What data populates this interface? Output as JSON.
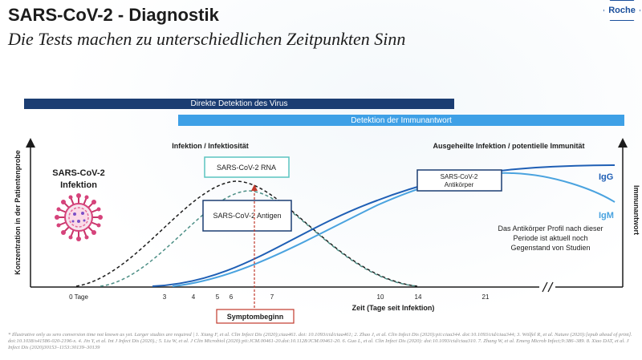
{
  "header": {
    "title": "SARS-CoV-2 - Diagnostik",
    "subtitle": "Die Tests machen zu unterschiedlichen Zeitpunkten Sinn",
    "logo": "Roche"
  },
  "bars": {
    "direct": "Direkte Detektion des Virus",
    "immune": "Detektion der Immunantwort"
  },
  "icons": {
    "virus": "virus-icon",
    "logo": "roche-logo"
  },
  "colors": {
    "dark_blue": "#1b3d72",
    "light_blue": "#3ea0e6",
    "igg": "#1f5fb5",
    "igm": "#4aa3df",
    "rna": "#1c1c1c",
    "antigen": "#4d8f86",
    "symptom": "#c0392b"
  },
  "chart_data": {
    "type": "line",
    "xlabel": "Zeit (Tage seit Infektion)",
    "ylabel": "Konzentration in der Patientenprobe",
    "ylabel_right": "Immunantwort",
    "x_ticks": [
      "0 Tage",
      "3",
      "4",
      "5",
      "6",
      "7",
      "10",
      "14",
      "21"
    ],
    "phases": [
      "Infektion / Infektiosität",
      "Ausgeheilte Infektion / potentielle Immunität"
    ],
    "series": [
      {
        "name": "SARS-CoV-2 RNA",
        "style": "dashed",
        "color": "#1c1c1c"
      },
      {
        "name": "SARS-CoV-2 Antigen",
        "style": "dashed",
        "color": "#4d8f86"
      },
      {
        "name": "IgG",
        "style": "solid",
        "color": "#1f5fb5"
      },
      {
        "name": "IgM",
        "style": "solid",
        "color": "#4aa3df"
      }
    ],
    "labels": {
      "infection": [
        "SARS-CoV-2",
        "Infektion"
      ],
      "antibody": [
        "SARS-CoV-2",
        "Antikörper"
      ],
      "antibody_note": [
        "Das Antikörper Profil nach dieser",
        "Periode ist aktuell noch",
        "Gegenstand von Studien"
      ],
      "symptom": "Symptombeginn",
      "igg": "IgG",
      "igm": "IgM"
    }
  },
  "footnote": "* Illustrative only as sero conversion time not known as yet. Larger studies are required | 1. Xiang F, et al. Clin Infect Dis (2020);ciaa461. doi: 10.1093/cid/ciaa461; 2. Zhao J, et al. Clin Infect Dis (2020):pii:ciaa344. doi:10.1093/cid/ciaa344; 3. Wölfel R, et al. Nature (2020):[epub ahead of print]. doi:10.1038/s41586-020-2196-x. 4. Jin Y, et al. Int J Infect Dis (2020).; 5. Liu W, et al. J Clin Microbiol (2020):pii:JCM.00461-20.doi:10.1128/JCM.00461-20. 6. Guo L, et al. Clin Infect Dis (2020): doi:10.1093/cid/ciaa310. 7. Zhang W, et al. Emerg Microb Infect;9:386–389. 8. Xiao DAT, et al. J Infect Dis (2020)30153–1153:30139–30139"
}
